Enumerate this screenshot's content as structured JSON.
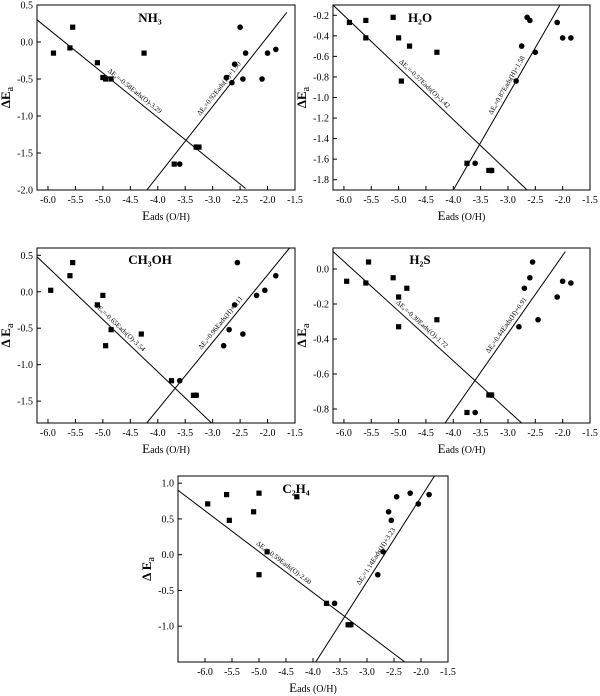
{
  "figure": {
    "background": "#ffffff",
    "ink": "#000000"
  },
  "chart_data": [
    {
      "type": "scatter",
      "title": "NH₃",
      "xlabel_main": "E",
      "xlabel_sub": "ads (O/H)",
      "ylabel_main": "ΔE",
      "ylabel_sub": "a",
      "xlim": [
        -6.2,
        -1.5
      ],
      "ylim": [
        -2.0,
        0.5
      ],
      "xticks": [
        "-6.0",
        "-5.5",
        "-5.0",
        "-4.5",
        "-4.0",
        "-3.5",
        "-3.0",
        "-2.5",
        "-2.0",
        "-1.5"
      ],
      "yticks": [
        "0.5",
        "0.0",
        "-0.5",
        "-1.0",
        "-1.5",
        "-2.0"
      ],
      "fits": [
        {
          "label": "ΔEₐ=-0.58Eads(O)-3.29",
          "x1": -6.2,
          "y1": 0.3,
          "x2": -2.4,
          "y2": -1.98
        },
        {
          "label": "ΔEₐ=0.92Eads(H)+1.90",
          "x1": -4.2,
          "y1": -2.0,
          "x2": -1.65,
          "y2": 0.4
        }
      ],
      "series": [
        {
          "marker": "square",
          "x": [
            -5.9,
            -5.6,
            -5.55,
            -5.1,
            -5.0,
            -4.95,
            -4.85,
            -4.25,
            -3.7,
            -3.3,
            -3.25
          ],
          "y": [
            -0.15,
            -0.08,
            0.2,
            -0.28,
            -0.48,
            -0.5,
            -0.5,
            -0.15,
            -1.65,
            -1.42,
            -1.42
          ]
        },
        {
          "marker": "circle",
          "x": [
            -3.6,
            -3.3,
            -2.75,
            -2.65,
            -2.6,
            -2.5,
            -2.45,
            -2.4,
            -2.1,
            -2.0,
            -1.85
          ],
          "y": [
            -1.65,
            -1.42,
            -0.48,
            -0.55,
            -0.3,
            0.2,
            -0.5,
            -0.15,
            -0.5,
            -0.15,
            -0.1
          ]
        }
      ]
    },
    {
      "type": "scatter",
      "title": "H₂O",
      "xlabel_main": "E",
      "xlabel_sub": "ads (O/H)",
      "ylabel_main": "ΔE",
      "ylabel_sub": "a",
      "xlim": [
        -6.2,
        -1.5
      ],
      "ylim": [
        -1.9,
        -0.1
      ],
      "xticks": [
        "-6.0",
        "-5.5",
        "-5.0",
        "-4.5",
        "-4.0",
        "-3.5",
        "-3.0",
        "-2.5",
        "-2.0",
        "-1.5"
      ],
      "yticks": [
        "-0.2",
        "-0.4",
        "-0.6",
        "-0.8",
        "-1.0",
        "-1.2",
        "-1.4",
        "-1.6",
        "-1.8"
      ],
      "fits": [
        {
          "label": "ΔEₐ=-0.57Eads(O)-3.42",
          "x1": -6.2,
          "y1": -0.1,
          "x2": -2.65,
          "y2": -1.9
        },
        {
          "label": "ΔEₐ=0.87Eads(H)+1.58",
          "x1": -4.0,
          "y1": -1.9,
          "x2": -2.05,
          "y2": -0.1
        }
      ],
      "series": [
        {
          "marker": "square",
          "x": [
            -5.9,
            -5.6,
            -5.6,
            -5.1,
            -5.0,
            -4.95,
            -4.8,
            -4.3,
            -3.75,
            -3.35,
            -3.3
          ],
          "y": [
            -0.27,
            -0.42,
            -0.25,
            -0.22,
            -0.42,
            -0.84,
            -0.5,
            -0.56,
            -1.64,
            -1.71,
            -1.71
          ]
        },
        {
          "marker": "circle",
          "x": [
            -3.6,
            -3.3,
            -2.85,
            -2.75,
            -2.65,
            -2.6,
            -2.5,
            -2.1,
            -2.0,
            -1.85
          ],
          "y": [
            -1.64,
            -1.71,
            -0.84,
            -0.5,
            -0.22,
            -0.25,
            -0.56,
            -0.27,
            -0.42,
            -0.42
          ]
        }
      ]
    },
    {
      "type": "scatter",
      "title": "CH₃OH",
      "xlabel_main": "E",
      "xlabel_sub": "ads (O/H)",
      "ylabel_main": "Δ E",
      "ylabel_sub": "a",
      "xlim": [
        -6.2,
        -1.5
      ],
      "ylim": [
        -1.8,
        0.6
      ],
      "xticks": [
        "-6.0",
        "-5.5",
        "-5.0",
        "-4.5",
        "-4.0",
        "-3.5",
        "-3.0",
        "-2.5",
        "-2.0",
        "-1.5"
      ],
      "yticks": [
        "0.5",
        "0.0",
        "-0.5",
        "-1.0",
        "-1.5"
      ],
      "fits": [
        {
          "label": "ΔEₐ=-0.65Eads(O)-3.54",
          "x1": -6.2,
          "y1": 0.48,
          "x2": -3.02,
          "y2": -1.8
        },
        {
          "label": "ΔEₐ=0.96Eads(H)+2.11",
          "x1": -4.2,
          "y1": -1.8,
          "x2": -1.6,
          "y2": 0.6
        }
      ],
      "series": [
        {
          "marker": "square",
          "x": [
            -5.95,
            -5.6,
            -5.55,
            -5.1,
            -5.0,
            -4.95,
            -4.85,
            -4.3,
            -3.75,
            -3.35,
            -3.3
          ],
          "y": [
            0.02,
            0.22,
            0.4,
            -0.18,
            -0.05,
            -0.74,
            -0.52,
            -0.58,
            -1.22,
            -1.42,
            -1.42
          ]
        },
        {
          "marker": "circle",
          "x": [
            -3.6,
            -3.3,
            -2.8,
            -2.7,
            -2.6,
            -2.55,
            -2.45,
            -2.2,
            -2.05,
            -1.85
          ],
          "y": [
            -1.22,
            -1.42,
            -0.74,
            -0.52,
            -0.18,
            0.4,
            -0.58,
            -0.05,
            0.02,
            0.22
          ]
        }
      ]
    },
    {
      "type": "scatter",
      "title": "H₂S",
      "xlabel_main": "E",
      "xlabel_sub": "ads (O/H)",
      "ylabel_main": "Δ E",
      "ylabel_sub": "a",
      "xlim": [
        -6.2,
        -1.5
      ],
      "ylim": [
        -0.88,
        0.12
      ],
      "xticks": [
        "-6.0",
        "-5.5",
        "-5.0",
        "-4.5",
        "-4.0",
        "-3.5",
        "-3.0",
        "-2.5",
        "-2.0",
        "-1.5"
      ],
      "yticks": [
        "0.0",
        "-0.2",
        "-0.4",
        "-0.6",
        "-0.8"
      ],
      "fits": [
        {
          "label": "ΔEₐ=-0.30Eads(O)-1.72",
          "x1": -6.2,
          "y1": 0.1,
          "x2": -2.75,
          "y2": -0.88
        },
        {
          "label": "ΔEₐ=0.44Eads(H)+0.91",
          "x1": -4.15,
          "y1": -0.88,
          "x2": -1.95,
          "y2": 0.1
        }
      ],
      "series": [
        {
          "marker": "square",
          "x": [
            -5.95,
            -5.6,
            -5.55,
            -5.1,
            -5.0,
            -5.0,
            -4.85,
            -4.3,
            -3.75,
            -3.35,
            -3.3
          ],
          "y": [
            -0.07,
            -0.08,
            0.04,
            -0.05,
            -0.16,
            -0.33,
            -0.11,
            -0.29,
            -0.82,
            -0.72,
            -0.72
          ]
        },
        {
          "marker": "circle",
          "x": [
            -3.6,
            -3.3,
            -2.8,
            -2.7,
            -2.6,
            -2.55,
            -2.45,
            -2.1,
            -2.0,
            -1.85
          ],
          "y": [
            -0.82,
            -0.72,
            -0.33,
            -0.11,
            -0.05,
            0.04,
            -0.29,
            -0.16,
            -0.07,
            -0.08
          ]
        }
      ]
    },
    {
      "type": "scatter",
      "title": "C₂H₄",
      "xlabel_main": "E",
      "xlabel_sub": "ads (O/H)",
      "ylabel_main": "Δ E",
      "ylabel_sub": "a",
      "xlim": [
        -6.5,
        -1.5
      ],
      "ylim": [
        -1.5,
        1.1
      ],
      "xticks": [
        "-6.0",
        "-5.5",
        "-5.0",
        "-4.5",
        "-4.0",
        "-3.5",
        "-3.0",
        "-2.5",
        "-2.0",
        "-1.5"
      ],
      "yticks": [
        "1.0",
        "0.5",
        "0.0",
        "-0.5",
        "-1.0"
      ],
      "fits": [
        {
          "label": "ΔEₐ=-0.59Eads(O)-2.60",
          "x1": -6.5,
          "y1": 0.9,
          "x2": -2.3,
          "y2": -1.5
        },
        {
          "label": "ΔEₐ=1.14Eads(H)+3.23",
          "x1": -3.95,
          "y1": -1.5,
          "x2": -1.75,
          "y2": 1.1
        }
      ],
      "series": [
        {
          "marker": "square",
          "x": [
            -5.95,
            -5.6,
            -5.55,
            -5.1,
            -5.0,
            -5.0,
            -4.85,
            -4.3,
            -3.75,
            -3.35,
            -3.3
          ],
          "y": [
            0.71,
            0.84,
            0.48,
            0.6,
            0.86,
            -0.28,
            0.04,
            0.81,
            -0.68,
            -0.98,
            -0.98
          ]
        },
        {
          "marker": "circle",
          "x": [
            -3.6,
            -3.3,
            -2.8,
            -2.7,
            -2.6,
            -2.55,
            -2.45,
            -2.2,
            -2.05,
            -1.85
          ],
          "y": [
            -0.68,
            -0.98,
            -0.28,
            0.04,
            0.6,
            0.48,
            0.81,
            0.86,
            0.71,
            0.84
          ]
        }
      ]
    }
  ]
}
